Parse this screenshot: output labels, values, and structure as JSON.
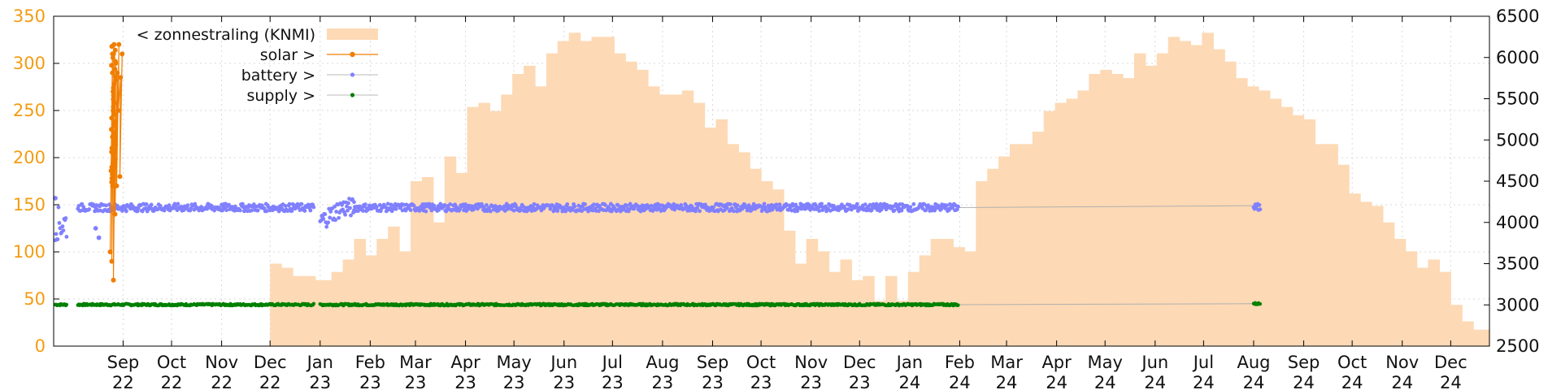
{
  "chart_data": {
    "type": "area",
    "colors": {
      "zonnestraling": "#fdd9b5",
      "solar": "#f07d00",
      "battery": "#8080ff",
      "supply": "#008000",
      "frame": "#000000",
      "left_axis": "#f39c12"
    },
    "grid": true,
    "legend_position": "top-left",
    "x": {
      "type": "date",
      "range": [
        "2022-07-20",
        "2024-12-25"
      ],
      "tick_labels": [
        {
          "date": "2022-09-01",
          "label": [
            "Sep",
            "22"
          ]
        },
        {
          "date": "2022-10-01",
          "label": [
            "Oct",
            "22"
          ]
        },
        {
          "date": "2022-11-01",
          "label": [
            "Nov",
            "22"
          ]
        },
        {
          "date": "2022-12-01",
          "label": [
            "Dec",
            "22"
          ]
        },
        {
          "date": "2023-01-01",
          "label": [
            "Jan",
            "23"
          ]
        },
        {
          "date": "2023-02-01",
          "label": [
            "Feb",
            "23"
          ]
        },
        {
          "date": "2023-03-01",
          "label": [
            "Mar",
            "23"
          ]
        },
        {
          "date": "2023-04-01",
          "label": [
            "Apr",
            "23"
          ]
        },
        {
          "date": "2023-05-01",
          "label": [
            "May",
            "23"
          ]
        },
        {
          "date": "2023-06-01",
          "label": [
            "Jun",
            "23"
          ]
        },
        {
          "date": "2023-07-01",
          "label": [
            "Jul",
            "23"
          ]
        },
        {
          "date": "2023-08-01",
          "label": [
            "Aug",
            "23"
          ]
        },
        {
          "date": "2023-09-01",
          "label": [
            "Sep",
            "23"
          ]
        },
        {
          "date": "2023-10-01",
          "label": [
            "Oct",
            "23"
          ]
        },
        {
          "date": "2023-11-01",
          "label": [
            "Nov",
            "23"
          ]
        },
        {
          "date": "2023-12-01",
          "label": [
            "Dec",
            "23"
          ]
        },
        {
          "date": "2024-01-01",
          "label": [
            "Jan",
            "24"
          ]
        },
        {
          "date": "2024-02-01",
          "label": [
            "Feb",
            "24"
          ]
        },
        {
          "date": "2024-03-01",
          "label": [
            "Mar",
            "24"
          ]
        },
        {
          "date": "2024-04-01",
          "label": [
            "Apr",
            "24"
          ]
        },
        {
          "date": "2024-05-01",
          "label": [
            "May",
            "24"
          ]
        },
        {
          "date": "2024-06-01",
          "label": [
            "Jun",
            "24"
          ]
        },
        {
          "date": "2024-07-01",
          "label": [
            "Jul",
            "24"
          ]
        },
        {
          "date": "2024-08-01",
          "label": [
            "Aug",
            "24"
          ]
        },
        {
          "date": "2024-09-01",
          "label": [
            "Sep",
            "24"
          ]
        },
        {
          "date": "2024-10-01",
          "label": [
            "Oct",
            "24"
          ]
        },
        {
          "date": "2024-11-01",
          "label": [
            "Nov",
            "24"
          ]
        },
        {
          "date": "2024-12-01",
          "label": [
            "Dec",
            "24"
          ]
        }
      ]
    },
    "y_left": {
      "range": [
        0,
        350
      ],
      "ticks": [
        "0",
        "50",
        "100",
        "150",
        "200",
        "250",
        "300",
        "350"
      ],
      "tick_values": [
        0,
        50,
        100,
        150,
        200,
        250,
        300,
        350
      ]
    },
    "y_right": {
      "range": [
        2500,
        6500
      ],
      "ticks": [
        "2500",
        "3000",
        "3500",
        "4000",
        "4500",
        "5000",
        "5500",
        "6000",
        "6500"
      ],
      "tick_values": [
        2500,
        3000,
        3500,
        4000,
        4500,
        5000,
        5500,
        6000,
        6500
      ]
    },
    "series": [
      {
        "name": "< zonnestraling (KNMI)",
        "axis": "right",
        "style": "filled-steps",
        "points": [
          [
            "2022-12-01",
            3500
          ],
          [
            "2022-12-08",
            3450
          ],
          [
            "2022-12-15",
            3350
          ],
          [
            "2022-12-22",
            3350
          ],
          [
            "2022-12-29",
            3300
          ],
          [
            "2023-01-01",
            3300
          ],
          [
            "2023-01-08",
            3400
          ],
          [
            "2023-01-15",
            3550
          ],
          [
            "2023-01-22",
            3800
          ],
          [
            "2023-01-29",
            3600
          ],
          [
            "2023-02-05",
            3800
          ],
          [
            "2023-02-12",
            3950
          ],
          [
            "2023-02-19",
            3650
          ],
          [
            "2023-02-26",
            4500
          ],
          [
            "2023-03-05",
            4550
          ],
          [
            "2023-03-12",
            4000
          ],
          [
            "2023-03-19",
            4800
          ],
          [
            "2023-03-26",
            4600
          ],
          [
            "2023-04-02",
            5400
          ],
          [
            "2023-04-09",
            5450
          ],
          [
            "2023-04-16",
            5350
          ],
          [
            "2023-04-23",
            5550
          ],
          [
            "2023-04-30",
            5800
          ],
          [
            "2023-05-07",
            5900
          ],
          [
            "2023-05-14",
            5650
          ],
          [
            "2023-05-21",
            6050
          ],
          [
            "2023-05-28",
            6200
          ],
          [
            "2023-06-04",
            6300
          ],
          [
            "2023-06-11",
            6200
          ],
          [
            "2023-06-18",
            6250
          ],
          [
            "2023-06-25",
            6250
          ],
          [
            "2023-07-02",
            6050
          ],
          [
            "2023-07-09",
            5950
          ],
          [
            "2023-07-16",
            5850
          ],
          [
            "2023-07-23",
            5650
          ],
          [
            "2023-07-30",
            5550
          ],
          [
            "2023-08-06",
            5550
          ],
          [
            "2023-08-13",
            5600
          ],
          [
            "2023-08-20",
            5450
          ],
          [
            "2023-08-27",
            5150
          ],
          [
            "2023-09-03",
            5250
          ],
          [
            "2023-09-10",
            4950
          ],
          [
            "2023-09-17",
            4850
          ],
          [
            "2023-09-24",
            4650
          ],
          [
            "2023-10-01",
            4500
          ],
          [
            "2023-10-08",
            4400
          ],
          [
            "2023-10-15",
            3900
          ],
          [
            "2023-10-22",
            3500
          ],
          [
            "2023-10-29",
            3800
          ],
          [
            "2023-11-05",
            3650
          ],
          [
            "2023-11-12",
            3400
          ],
          [
            "2023-11-19",
            3550
          ],
          [
            "2023-11-26",
            3300
          ],
          [
            "2023-12-03",
            3350
          ],
          [
            "2023-12-10",
            3050
          ],
          [
            "2023-12-17",
            3350
          ],
          [
            "2023-12-24",
            3050
          ],
          [
            "2023-12-31",
            3400
          ],
          [
            "2024-01-07",
            3600
          ],
          [
            "2024-01-14",
            3800
          ],
          [
            "2024-01-21",
            3800
          ],
          [
            "2024-01-28",
            3700
          ],
          [
            "2024-02-04",
            3650
          ],
          [
            "2024-02-11",
            4500
          ],
          [
            "2024-02-18",
            4650
          ],
          [
            "2024-02-25",
            4800
          ],
          [
            "2024-03-03",
            4950
          ],
          [
            "2024-03-10",
            4950
          ],
          [
            "2024-03-17",
            5100
          ],
          [
            "2024-03-24",
            5350
          ],
          [
            "2024-03-31",
            5450
          ],
          [
            "2024-04-07",
            5500
          ],
          [
            "2024-04-14",
            5600
          ],
          [
            "2024-04-21",
            5800
          ],
          [
            "2024-04-28",
            5850
          ],
          [
            "2024-05-05",
            5800
          ],
          [
            "2024-05-12",
            5750
          ],
          [
            "2024-05-19",
            6050
          ],
          [
            "2024-05-26",
            5900
          ],
          [
            "2024-06-02",
            6050
          ],
          [
            "2024-06-09",
            6250
          ],
          [
            "2024-06-16",
            6200
          ],
          [
            "2024-06-23",
            6150
          ],
          [
            "2024-06-30",
            6300
          ],
          [
            "2024-07-07",
            6100
          ],
          [
            "2024-07-14",
            5950
          ],
          [
            "2024-07-21",
            5750
          ],
          [
            "2024-07-28",
            5650
          ],
          [
            "2024-08-04",
            5600
          ],
          [
            "2024-08-11",
            5500
          ],
          [
            "2024-08-18",
            5400
          ],
          [
            "2024-08-25",
            5300
          ],
          [
            "2024-09-01",
            5250
          ],
          [
            "2024-09-08",
            4950
          ],
          [
            "2024-09-15",
            4950
          ],
          [
            "2024-09-22",
            4700
          ],
          [
            "2024-09-29",
            4350
          ],
          [
            "2024-10-06",
            4250
          ],
          [
            "2024-10-13",
            4200
          ],
          [
            "2024-10-20",
            4000
          ],
          [
            "2024-10-27",
            3800
          ],
          [
            "2024-11-03",
            3650
          ],
          [
            "2024-11-10",
            3450
          ],
          [
            "2024-11-17",
            3550
          ],
          [
            "2024-11-24",
            3400
          ],
          [
            "2024-12-01",
            3000
          ],
          [
            "2024-12-08",
            2800
          ],
          [
            "2024-12-15",
            2700
          ]
        ]
      },
      {
        "name": "solar >",
        "axis": "left",
        "style": "linespoints",
        "points": [
          [
            "2022-08-24",
            100
          ],
          [
            "2022-08-25",
            310
          ],
          [
            "2022-08-25",
            90
          ],
          [
            "2022-08-26",
            320
          ],
          [
            "2022-08-26",
            70
          ],
          [
            "2022-08-27",
            300
          ],
          [
            "2022-08-27",
            140
          ],
          [
            "2022-08-28",
            290
          ],
          [
            "2022-08-28",
            170
          ],
          [
            "2022-08-29",
            320
          ],
          [
            "2022-08-29",
            250
          ],
          [
            "2022-08-30",
            285
          ],
          [
            "2022-08-30",
            180
          ],
          [
            "2022-08-31",
            310
          ]
        ]
      },
      {
        "name": "battery >",
        "axis": "left",
        "style": "points",
        "segments": [
          {
            "from": "2022-07-21",
            "to": "2022-07-28",
            "level": 130,
            "spread": 18
          },
          {
            "from": "2022-08-04",
            "to": "2022-11-30",
            "level": 147,
            "spread": 4
          },
          {
            "from": "2022-12-01",
            "to": "2022-12-28",
            "level": 147,
            "spread": 4
          },
          {
            "from": "2023-01-01",
            "to": "2023-01-22",
            "level": 132,
            "spread": 10,
            "ramp_to": 147
          },
          {
            "from": "2023-01-22",
            "to": "2024-01-31",
            "level": 147,
            "spread": 4
          },
          {
            "from": "2024-08-01",
            "to": "2024-08-05",
            "level": 147,
            "spread": 4
          }
        ],
        "outliers": [
          [
            "2022-07-21",
            157
          ],
          [
            "2022-08-15",
            125
          ],
          [
            "2022-08-17",
            115
          ]
        ]
      },
      {
        "name": "supply >",
        "axis": "left",
        "style": "points",
        "segments": [
          {
            "from": "2022-07-21",
            "to": "2022-07-28",
            "level": 44,
            "spread": 1
          },
          {
            "from": "2022-08-04",
            "to": "2022-12-28",
            "level": 44,
            "spread": 1
          },
          {
            "from": "2023-01-01",
            "to": "2024-01-31",
            "level": 44,
            "spread": 1
          },
          {
            "from": "2024-08-01",
            "to": "2024-08-05",
            "level": 45,
            "spread": 1
          }
        ]
      }
    ]
  }
}
